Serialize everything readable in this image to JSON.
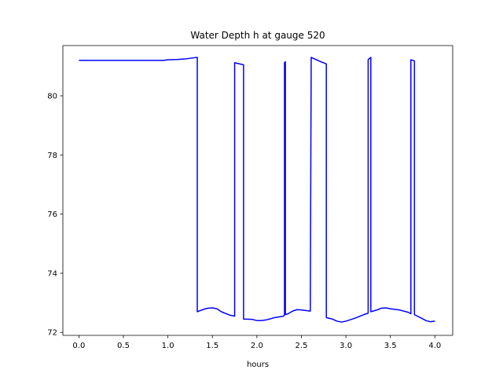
{
  "chart_data": {
    "type": "line",
    "title": "Water Depth h at gauge 520",
    "xlabel": "hours",
    "ylabel": "",
    "xlim": [
      -0.18,
      4.2
    ],
    "ylim": [
      71.9,
      81.7
    ],
    "xticks": [
      0.0,
      0.5,
      1.0,
      1.5,
      2.0,
      2.5,
      3.0,
      3.5,
      4.0
    ],
    "xtick_labels": [
      "0.0",
      "0.5",
      "1.0",
      "1.5",
      "2.0",
      "2.5",
      "3.0",
      "3.5",
      "4.0"
    ],
    "yticks": [
      72,
      74,
      76,
      78,
      80
    ],
    "ytick_labels": [
      "72",
      "74",
      "76",
      "78",
      "80"
    ],
    "grid": false,
    "legend": "none",
    "series": [
      {
        "color": "#0000ff",
        "x": [
          0.0,
          0.5,
          0.95,
          1.0,
          1.1,
          1.2,
          1.3,
          1.33,
          1.33,
          1.4,
          1.45,
          1.5,
          1.55,
          1.6,
          1.7,
          1.75,
          1.75,
          1.85,
          1.85,
          1.95,
          2.0,
          2.05,
          2.1,
          2.2,
          2.3,
          2.31,
          2.31,
          2.32,
          2.32,
          2.35,
          2.4,
          2.45,
          2.5,
          2.6,
          2.61,
          2.72,
          2.78,
          2.78,
          2.85,
          2.9,
          2.95,
          3.0,
          3.1,
          3.2,
          3.25,
          3.25,
          3.28,
          3.28,
          3.35,
          3.4,
          3.45,
          3.5,
          3.6,
          3.7,
          3.73,
          3.73,
          3.77,
          3.77,
          3.85,
          3.9,
          3.95,
          4.0
        ],
        "y": [
          81.2,
          81.2,
          81.2,
          81.22,
          81.23,
          81.25,
          81.29,
          81.3,
          72.7,
          72.78,
          72.82,
          72.83,
          72.8,
          72.7,
          72.58,
          72.55,
          81.12,
          81.05,
          72.45,
          72.44,
          72.4,
          72.4,
          72.42,
          72.5,
          72.55,
          72.6,
          81.12,
          81.15,
          72.6,
          72.63,
          72.72,
          72.77,
          72.76,
          72.72,
          81.3,
          81.15,
          81.08,
          72.5,
          72.45,
          72.38,
          72.35,
          72.38,
          72.48,
          72.6,
          72.65,
          81.22,
          81.3,
          72.7,
          72.76,
          72.82,
          72.83,
          72.8,
          72.76,
          72.68,
          72.63,
          81.22,
          81.18,
          72.6,
          72.48,
          72.4,
          72.36,
          72.38
        ]
      }
    ]
  }
}
